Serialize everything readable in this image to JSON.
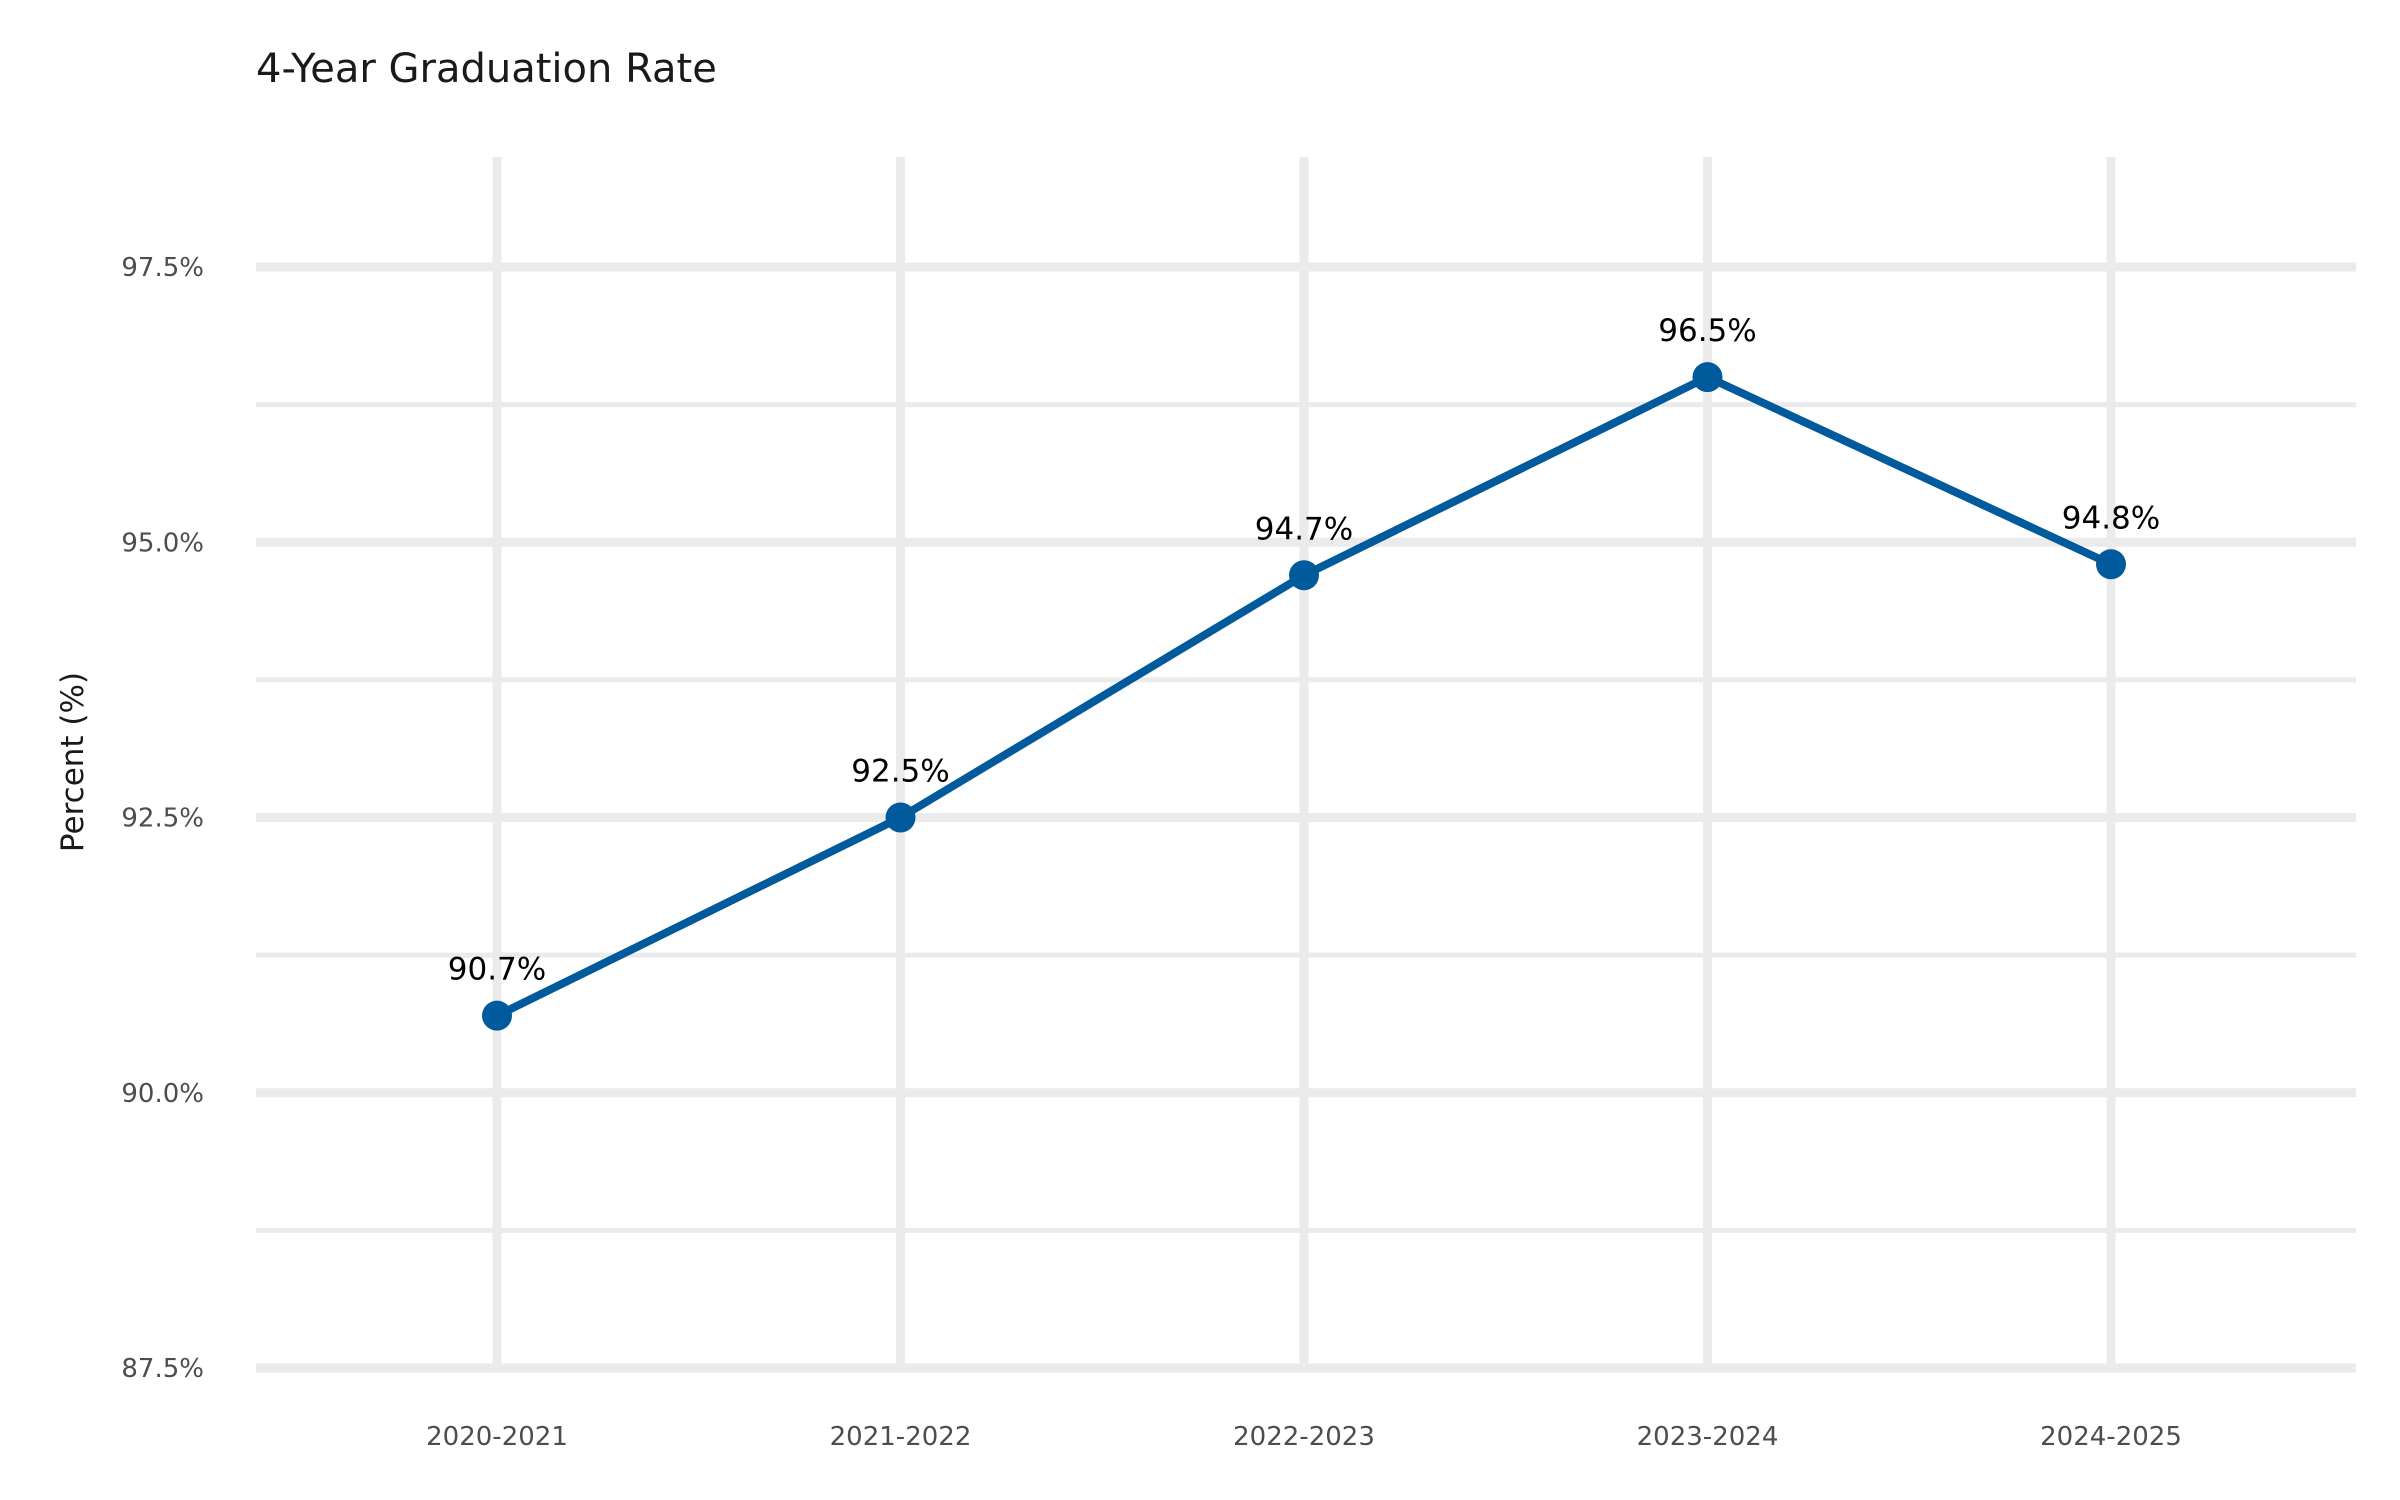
{
  "chart_data": {
    "type": "line",
    "title": "4-Year Graduation Rate",
    "xlabel": "",
    "ylabel": "Percent (%)",
    "categories": [
      "2020-2021",
      "2021-2022",
      "2022-2023",
      "2023-2024",
      "2024-2025"
    ],
    "series": [
      {
        "values": [
          90.7,
          92.5,
          94.7,
          96.5,
          94.8
        ],
        "data_labels": [
          "90.7%",
          "92.5%",
          "94.7%",
          "96.5%",
          "94.8%"
        ],
        "color": "#005a9c"
      }
    ],
    "ylim": [
      87.5,
      98.5
    ],
    "y_ticks": [
      87.5,
      90.0,
      92.5,
      95.0,
      97.5
    ],
    "y_tick_labels": [
      "87.5%",
      "90.0%",
      "92.5%",
      "95.0%",
      "97.5%"
    ],
    "grid": true,
    "grid_color": "#ebebeb",
    "legend": "none"
  }
}
